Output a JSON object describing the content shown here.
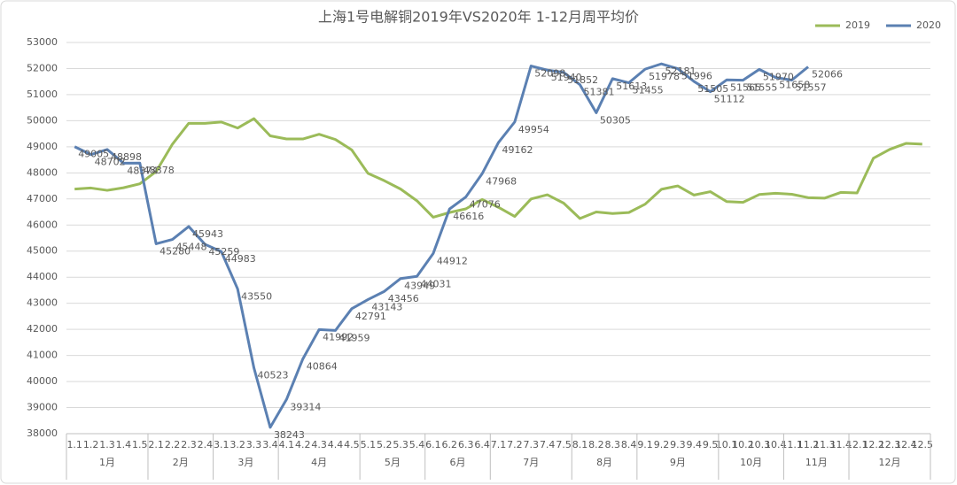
{
  "chart_data": {
    "type": "line",
    "title": "上海1号电解铜2019年VS2020年  1-12月周平均价",
    "categories": [
      "1.1",
      "1.2",
      "1.3",
      "1.4",
      "1.5",
      "2.1",
      "2.2",
      "2.3",
      "2.4",
      "3.1",
      "3.2",
      "3.3",
      "3.4",
      "4.1",
      "4.2",
      "4.3",
      "4.4",
      "4.5",
      "5.1",
      "5.2",
      "5.3",
      "5.4",
      "6.1",
      "6.2",
      "6.3",
      "6.4",
      "7.1",
      "7.2",
      "7.3",
      "7.4",
      "7.5",
      "8.1",
      "8.2",
      "8.3",
      "8.4",
      "9.1",
      "9.2",
      "9.3",
      "9.4",
      "9.5",
      "10.1",
      "10.2",
      "10.3",
      "10.4",
      "11.1",
      "11.2",
      "11.3",
      "11.4",
      "12.1",
      "12.2",
      "12.3",
      "12.4",
      "12.5"
    ],
    "groups": [
      {
        "label": "1月",
        "span": 5
      },
      {
        "label": "2月",
        "span": 4
      },
      {
        "label": "3月",
        "span": 4
      },
      {
        "label": "4月",
        "span": 5
      },
      {
        "label": "5月",
        "span": 4
      },
      {
        "label": "6月",
        "span": 4
      },
      {
        "label": "7月",
        "span": 5
      },
      {
        "label": "8月",
        "span": 4
      },
      {
        "label": "9月",
        "span": 5
      },
      {
        "label": "10月",
        "span": 4
      },
      {
        "label": "11月",
        "span": 4
      },
      {
        "label": "12月",
        "span": 5
      }
    ],
    "series": [
      {
        "name": "2019",
        "color": "#9bbb59",
        "values": [
          47380,
          47420,
          47330,
          47430,
          47580,
          48050,
          49100,
          49900,
          49900,
          49950,
          49720,
          50080,
          49420,
          49300,
          49300,
          49480,
          49280,
          48880,
          47980,
          47700,
          47380,
          46930,
          46300,
          46480,
          46620,
          46980,
          46680,
          46330,
          47000,
          47160,
          46840,
          46250,
          46500,
          46440,
          46480,
          46800,
          47370,
          47500,
          47150,
          47280,
          46900,
          46870,
          47170,
          47220,
          47180,
          47050,
          47030,
          47250,
          47230,
          48560,
          48900,
          49130,
          49100
        ]
      },
      {
        "name": "2020",
        "color": "#5b80b2",
        "data_labels": true,
        "values": [
          49005,
          48702,
          48898,
          48374,
          48378,
          45280,
          45448,
          45943,
          45259,
          44983,
          43550,
          40523,
          38243,
          39314,
          40864,
          41992,
          41959,
          42791,
          43143,
          43456,
          43949,
          44031,
          44912,
          46616,
          47076,
          47968,
          49162,
          49954,
          52098,
          51940,
          51852,
          51381,
          50305,
          51613,
          51455,
          51978,
          52181,
          51996,
          51505,
          51112,
          51565,
          51555,
          51970,
          51658,
          51557,
          52066,
          null,
          null,
          null,
          null,
          null,
          null,
          null
        ]
      }
    ],
    "ylim": [
      38000,
      53000
    ],
    "yticks": [
      38000,
      39000,
      40000,
      41000,
      42000,
      43000,
      44000,
      45000,
      46000,
      47000,
      48000,
      49000,
      50000,
      51000,
      52000,
      53000
    ],
    "grid": true,
    "legend": "top-right"
  }
}
